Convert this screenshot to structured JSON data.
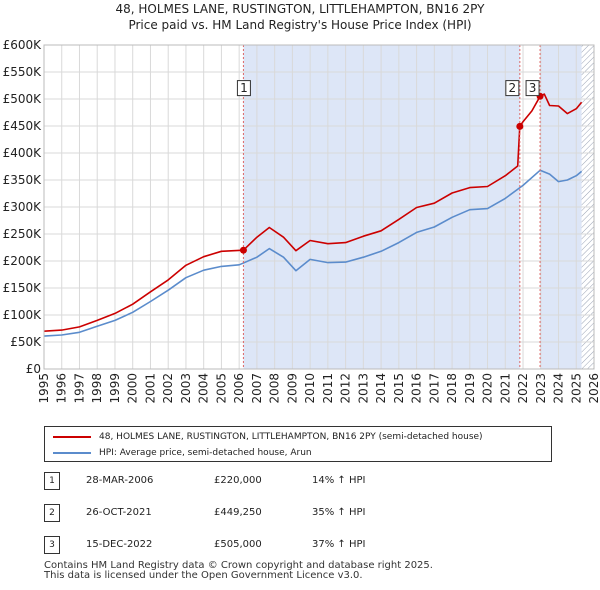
{
  "header": {
    "title_line1": "48, HOLMES LANE, RUSTINGTON, LITTLEHAMPTON, BN16 2PY",
    "title_line2": "Price paid vs. HM Land Registry's House Price Index (HPI)"
  },
  "colors": {
    "property": "#cc0000",
    "hpi": "#5b8ccc",
    "shade": "#dde6f7",
    "grid": "#d9d9d9",
    "marker_line": "#dd6666"
  },
  "chart_data": {
    "type": "line",
    "title": "Price paid vs. HM Land Registry's House Price Index (HPI)",
    "xlabel": "",
    "ylabel": "",
    "xlim": [
      1995,
      2026
    ],
    "ylim": [
      0,
      600000
    ],
    "x_ticks": [
      "1995",
      "1996",
      "1997",
      "1998",
      "1999",
      "2000",
      "2001",
      "2002",
      "2003",
      "2004",
      "2005",
      "2006",
      "2007",
      "2008",
      "2009",
      "2010",
      "2011",
      "2012",
      "2013",
      "2014",
      "2015",
      "2016",
      "2017",
      "2018",
      "2019",
      "2020",
      "2021",
      "2022",
      "2023",
      "2024",
      "2025",
      "2026"
    ],
    "y_ticks": [
      "£0",
      "£50K",
      "£100K",
      "£150K",
      "£200K",
      "£250K",
      "£300K",
      "£350K",
      "£400K",
      "£450K",
      "£500K",
      "£550K",
      "£600K"
    ],
    "y_tick_values": [
      0,
      50000,
      100000,
      150000,
      200000,
      250000,
      300000,
      350000,
      400000,
      450000,
      500000,
      550000,
      600000
    ],
    "series": [
      {
        "name": "48, HOLMES LANE, RUSTINGTON, LITTLEHAMPTON, BN16 2PY (semi-detached house)",
        "x": [
          1995,
          1996,
          1997,
          1998,
          1999,
          2000,
          2001,
          2002,
          2003,
          2004,
          2005,
          2006.24,
          2007,
          2007.7,
          2008.5,
          2009.2,
          2010,
          2011,
          2012,
          2013,
          2014,
          2015,
          2016,
          2017,
          2018,
          2019,
          2020,
          2021,
          2021.7,
          2021.82,
          2022,
          2022.5,
          2022.96,
          2023.2,
          2023.5,
          2024,
          2024.5,
          2025,
          2025.3
        ],
        "values": [
          70000,
          72000,
          78000,
          90000,
          103000,
          120000,
          143000,
          165000,
          192000,
          208000,
          218000,
          220000,
          244000,
          262000,
          244000,
          219000,
          238000,
          232000,
          234000,
          246000,
          256000,
          277000,
          299000,
          307000,
          326000,
          336000,
          338000,
          358000,
          376000,
          449250,
          458000,
          478000,
          505000,
          509000,
          488000,
          487000,
          473000,
          482000,
          494000
        ]
      },
      {
        "name": "HPI: Average price, semi-detached house, Arun",
        "x": [
          1995,
          1996,
          1997,
          1998,
          1999,
          2000,
          2001,
          2002,
          2003,
          2004,
          2005,
          2006,
          2007,
          2007.7,
          2008.5,
          2009.2,
          2010,
          2011,
          2012,
          2013,
          2014,
          2015,
          2016,
          2017,
          2018,
          2019,
          2020,
          2021,
          2022,
          2022.96,
          2023.5,
          2024,
          2024.5,
          2025,
          2025.3
        ],
        "values": [
          61000,
          63000,
          68000,
          79000,
          90000,
          105000,
          125000,
          146000,
          169000,
          183000,
          190000,
          193000,
          207000,
          223000,
          207000,
          182000,
          203000,
          197000,
          198000,
          207000,
          218000,
          234000,
          253000,
          263000,
          281000,
          295000,
          297000,
          316000,
          340000,
          368000,
          361000,
          347000,
          350000,
          358000,
          366000
        ]
      }
    ],
    "transactions": [
      {
        "label": "1",
        "x": 2006.24,
        "price": 220000
      },
      {
        "label": "2",
        "x": 2021.82,
        "price": 449250
      },
      {
        "label": "3",
        "x": 2022.96,
        "price": 505000
      }
    ],
    "shaded_ranges": [
      [
        2006.24,
        2021.82
      ],
      [
        2022.96,
        2025.3
      ]
    ],
    "hatched_range": [
      2025.3,
      2026
    ]
  },
  "legend": {
    "property_label": "48, HOLMES LANE, RUSTINGTON, LITTLEHAMPTON, BN16 2PY (semi-detached house)",
    "hpi_label": "HPI: Average price, semi-detached house, Arun"
  },
  "sales": [
    {
      "num": "1",
      "date": "28-MAR-2006",
      "price": "£220,000",
      "hpi": "14% ↑ HPI"
    },
    {
      "num": "2",
      "date": "26-OCT-2021",
      "price": "£449,250",
      "hpi": "35% ↑ HPI"
    },
    {
      "num": "3",
      "date": "15-DEC-2022",
      "price": "£505,000",
      "hpi": "37% ↑ HPI"
    }
  ],
  "footer": {
    "line1": "Contains HM Land Registry data © Crown copyright and database right 2025.",
    "line2": "This data is licensed under the Open Government Licence v3.0."
  }
}
